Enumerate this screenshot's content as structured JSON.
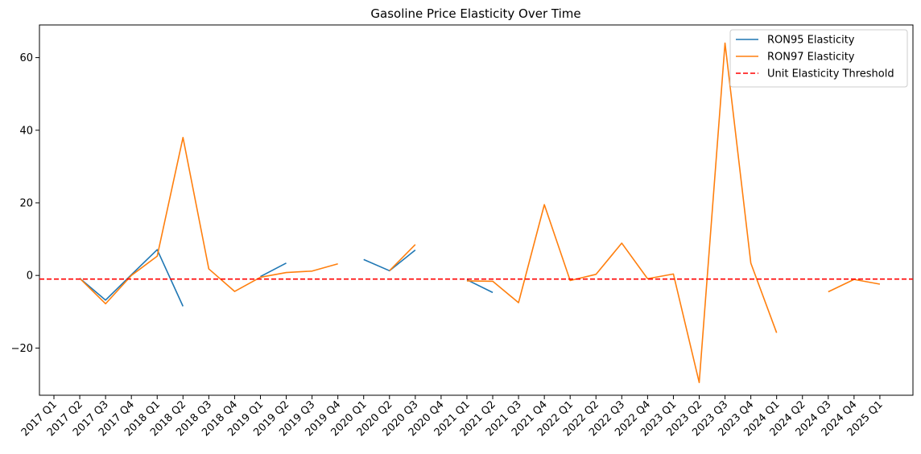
{
  "chart_data": {
    "type": "line",
    "title": "Gasoline Price Elasticity Over Time",
    "xlabel": "",
    "ylabel": "",
    "categories": [
      "2017 Q1",
      "2017 Q2",
      "2017 Q3",
      "2017 Q4",
      "2018 Q1",
      "2018 Q2",
      "2018 Q3",
      "2018 Q4",
      "2019 Q1",
      "2019 Q2",
      "2019 Q3",
      "2019 Q4",
      "2020 Q1",
      "2020 Q2",
      "2020 Q3",
      "2020 Q4",
      "2021 Q1",
      "2021 Q2",
      "2021 Q3",
      "2021 Q4",
      "2022 Q1",
      "2022 Q2",
      "2022 Q3",
      "2022 Q4",
      "2023 Q1",
      "2023 Q2",
      "2023 Q3",
      "2023 Q4",
      "2024 Q1",
      "2024 Q2",
      "2024 Q3",
      "2024 Q4",
      "2025 Q1"
    ],
    "ylim": [
      -33,
      69
    ],
    "yticks": [
      -20,
      0,
      20,
      40,
      60
    ],
    "ytick_labels": [
      "−20",
      "0",
      "20",
      "40",
      "60"
    ],
    "series": [
      {
        "name": "RON95 Elasticity",
        "color": "#1f77b4",
        "values": [
          null,
          -0.8,
          -6.8,
          0.2,
          7.1,
          -8.5,
          null,
          null,
          -0.3,
          3.4,
          null,
          null,
          4.4,
          1.3,
          7.0,
          null,
          -1.2,
          -4.7,
          null,
          null,
          null,
          null,
          null,
          null,
          null,
          null,
          null,
          null,
          null,
          null,
          null,
          null,
          null
        ]
      },
      {
        "name": "RON97 Elasticity",
        "color": "#ff7f0e",
        "values": [
          null,
          -0.8,
          -7.8,
          0.0,
          5.3,
          38.0,
          1.8,
          -4.4,
          -0.5,
          0.8,
          1.2,
          3.2,
          null,
          1.3,
          8.5,
          null,
          -1.5,
          -1.6,
          -7.5,
          19.5,
          -1.4,
          0.3,
          8.9,
          -0.9,
          0.4,
          -29.5,
          64.0,
          3.4,
          -15.8,
          null,
          -4.5,
          -1.1,
          -2.4
        ]
      }
    ],
    "reference_lines": [
      {
        "name": "Unit Elasticity Threshold",
        "y": -1,
        "color": "#ff0000",
        "style": "dashed"
      }
    ],
    "legend": {
      "position": "top-right"
    },
    "grid": false
  }
}
